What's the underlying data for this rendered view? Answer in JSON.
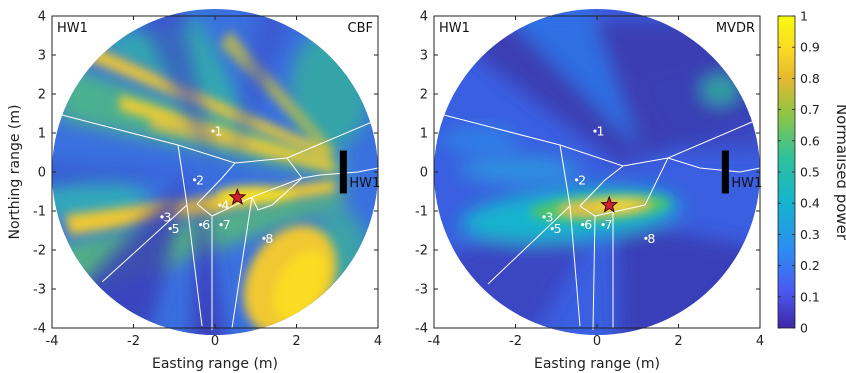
{
  "chart_data": [
    {
      "type": "heatmap",
      "corner_left": "HW1",
      "corner_right": "CBF",
      "xlabel": "Easting range (m)",
      "ylabel": "Northing range (m)",
      "xlim": [
        -4,
        4
      ],
      "ylim": [
        -4,
        4
      ],
      "xticks": [
        "-4",
        "-2",
        "0",
        "2",
        "4"
      ],
      "yticks": [
        "4",
        "3",
        "2",
        "1",
        "0",
        "-1",
        "-2",
        "-3",
        "-4"
      ],
      "source_label": "HW1",
      "source_bar": {
        "x": 3.15,
        "y0": -0.55,
        "y1": 0.55
      },
      "star": {
        "x": 0.55,
        "y": -0.65
      },
      "points": [
        {
          "label": "1",
          "x": -0.05,
          "y": 1.05
        },
        {
          "label": "2",
          "x": -0.5,
          "y": -0.2
        },
        {
          "label": "3",
          "x": -1.3,
          "y": -1.15
        },
        {
          "label": "4",
          "x": 0.12,
          "y": -0.85
        },
        {
          "label": "5",
          "x": -1.1,
          "y": -1.45
        },
        {
          "label": "6",
          "x": -0.35,
          "y": -1.35
        },
        {
          "label": "7",
          "x": 0.15,
          "y": -1.35
        },
        {
          "label": "8",
          "x": 1.2,
          "y": -1.7
        }
      ]
    },
    {
      "type": "heatmap",
      "corner_left": "HW1",
      "corner_right": "MVDR",
      "xlabel": "Easting range (m)",
      "ylabel": "",
      "xlim": [
        -4,
        4
      ],
      "ylim": [
        -4,
        4
      ],
      "xticks": [
        "-4",
        "-2",
        "0",
        "2",
        "4"
      ],
      "yticks": [
        "4",
        "3",
        "2",
        "1",
        "0",
        "-1",
        "-2",
        "-3",
        "-4"
      ],
      "source_label": "HW1",
      "source_bar": {
        "x": 3.15,
        "y0": -0.55,
        "y1": 0.55
      },
      "star": {
        "x": 0.3,
        "y": -0.85
      },
      "points": [
        {
          "label": "1",
          "x": -0.05,
          "y": 1.05
        },
        {
          "label": "2",
          "x": -0.5,
          "y": -0.2
        },
        {
          "label": "3",
          "x": -1.3,
          "y": -1.15
        },
        {
          "label": "5",
          "x": -1.1,
          "y": -1.45
        },
        {
          "label": "6",
          "x": -0.35,
          "y": -1.35
        },
        {
          "label": "7",
          "x": 0.15,
          "y": -1.35
        },
        {
          "label": "8",
          "x": 1.2,
          "y": -1.7
        }
      ]
    }
  ],
  "colorbar": {
    "label": "Normalised power",
    "ticks": [
      "1",
      "0.9",
      "0.8",
      "0.7",
      "0.6",
      "0.5",
      "0.4",
      "0.3",
      "0.2",
      "0.1",
      "0"
    ],
    "range": [
      0,
      1
    ],
    "colormap": [
      "#3e26a8",
      "#4a5af2",
      "#2d8cf2",
      "#14b4cf",
      "#2fc29a",
      "#8bc646",
      "#e4b92f",
      "#fbdc21",
      "#f9fb0e"
    ]
  }
}
